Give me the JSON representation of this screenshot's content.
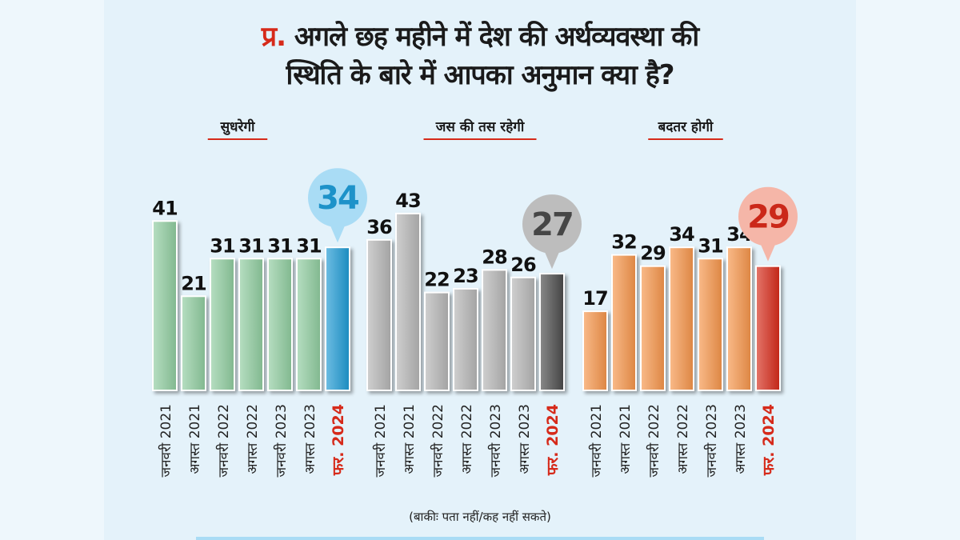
{
  "title": {
    "prefix": "प्र.",
    "line1": "अगले छह महीने में देश की अर्थव्यवस्था की",
    "line2": "स्थिति के बारे में आपका अनुमान क्या है?"
  },
  "note": "(बाकीः पता नहीं/कह नहीं सकते)",
  "chart_data": [
    {
      "type": "bar",
      "title": "सुधरेगी",
      "categories": [
        "जनवरी 2021",
        "अगस्त 2021",
        "जनवरी 2022",
        "अगस्त 2022",
        "जनवरी 2023",
        "अगस्त 2023",
        "फर. 2024"
      ],
      "values": [
        41,
        21,
        31,
        31,
        31,
        31,
        34
      ],
      "colors": {
        "bar": "#8fcc9f",
        "highlight": "#1e9ad4",
        "bubble": "#a9dcf5"
      }
    },
    {
      "type": "bar",
      "title": "जस की तस रहेगी",
      "categories": [
        "जनवरी 2021",
        "अगस्त 2021",
        "जनवरी 2022",
        "अगस्त 2022",
        "जनवरी 2023",
        "अगस्त 2023",
        "फर. 2024"
      ],
      "values": [
        36,
        43,
        22,
        23,
        28,
        26,
        27
      ],
      "colors": {
        "bar": "#b5b5b5",
        "highlight": "#4a4a4a",
        "bubble": "#bdbdbd"
      }
    },
    {
      "type": "bar",
      "title": "बदतर होगी",
      "categories": [
        "जनवरी 2021",
        "अगस्त 2021",
        "जनवरी 2022",
        "अगस्त 2022",
        "जनवरी 2023",
        "अगस्त 2023",
        "फर. 2024"
      ],
      "values": [
        17,
        32,
        29,
        34,
        31,
        34,
        29
      ],
      "colors": {
        "bar": "#f5954a",
        "highlight": "#d62a1a",
        "bubble": "#f5b6a8"
      }
    }
  ],
  "colors": {
    "accent": "#d62a1a"
  }
}
